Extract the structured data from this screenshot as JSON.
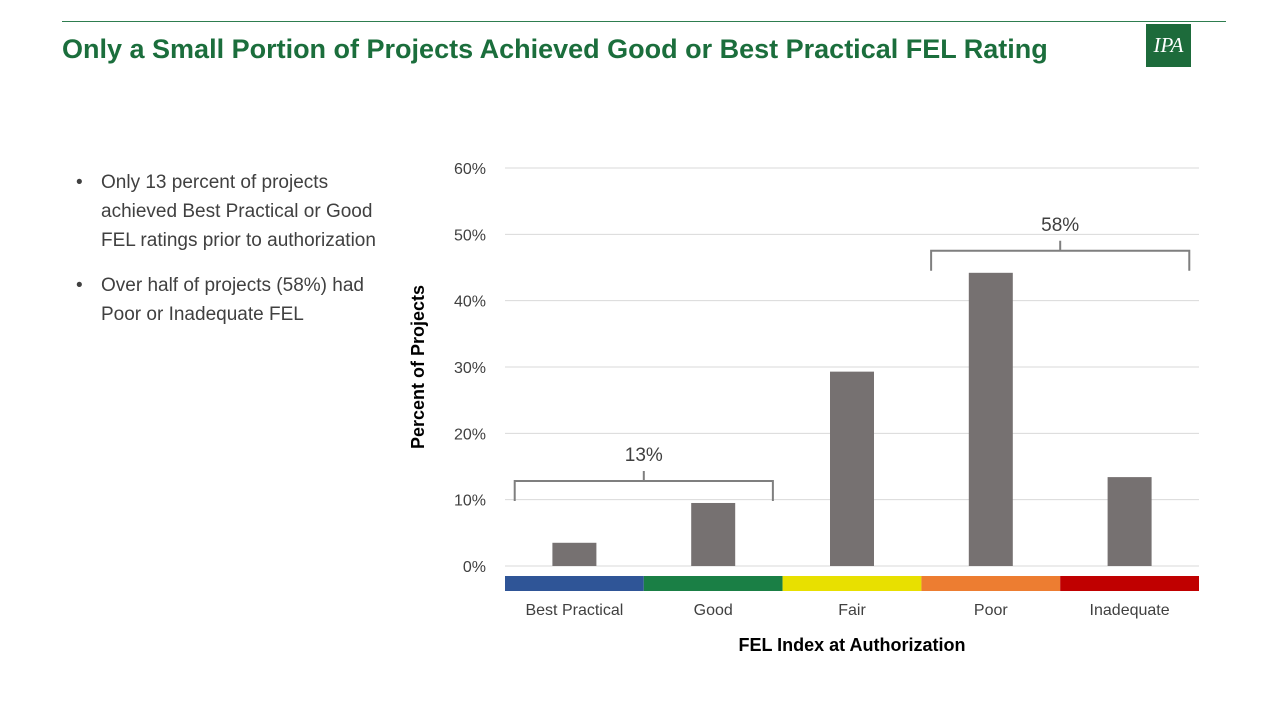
{
  "header": {
    "title": "Only a Small Portion of Projects Achieved Good or Best Practical FEL Rating",
    "logo_text": "IPA"
  },
  "bullets": [
    {
      "marker": "•",
      "text": "Only 13 percent of projects achieved Best Practical or Good FEL ratings prior to authorization"
    },
    {
      "marker": "•",
      "text": "Over half of projects (58%) had Poor or Inadequate FEL"
    }
  ],
  "colors": {
    "title": "#1b6e3c",
    "bars": "#767171",
    "gridline": "#d9d9d9",
    "bracket": "#7f7f7f"
  },
  "chart_data": {
    "type": "bar",
    "categories": [
      "Best Practical",
      "Good",
      "Fair",
      "Poor",
      "Inadequate"
    ],
    "values": [
      3.5,
      9.5,
      29.3,
      44.2,
      13.4
    ],
    "category_colors": [
      "#2f5597",
      "#1a7f45",
      "#e8e000",
      "#ed7d31",
      "#c00000"
    ],
    "xlabel": "FEL Index at Authorization",
    "ylabel": "Percent of Projects",
    "ylim": [
      0,
      60
    ],
    "yticks": [
      0,
      10,
      20,
      30,
      40,
      50,
      60
    ],
    "ytick_labels": [
      "0%",
      "10%",
      "20%",
      "30%",
      "40%",
      "50%",
      "60%"
    ],
    "grid": true,
    "legend": "none",
    "annotations": [
      {
        "label": "13%",
        "groups": [
          "Best Practical",
          "Good"
        ]
      },
      {
        "label": "58%",
        "groups": [
          "Poor",
          "Inadequate"
        ]
      }
    ]
  }
}
